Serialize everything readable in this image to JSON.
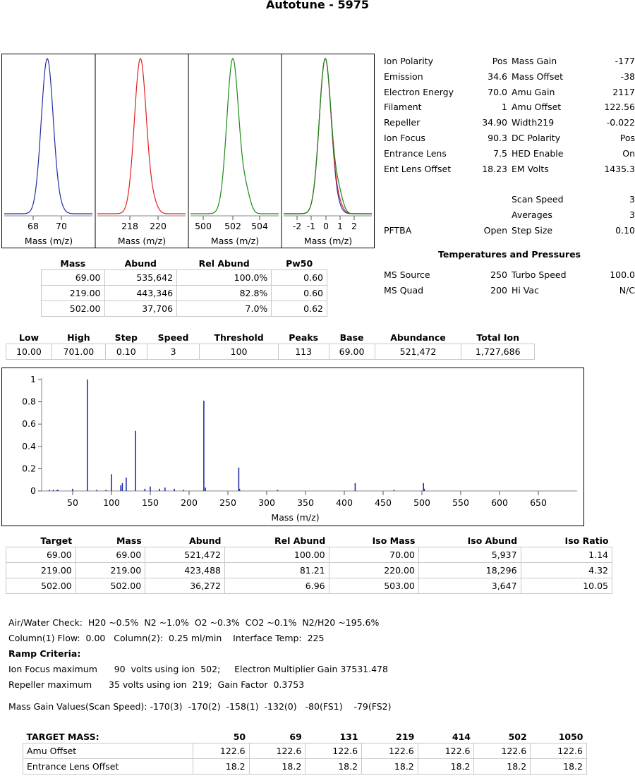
{
  "title": "Autotune - 5975",
  "peak_panels": [
    {
      "ticks": [
        "68",
        "70"
      ],
      "xlabel": "Mass (m/z)",
      "color": "#1f2fa6"
    },
    {
      "ticks": [
        "218",
        "220"
      ],
      "xlabel": "Mass (m/z)",
      "color": "#e02020"
    },
    {
      "ticks": [
        "500",
        "502",
        "504"
      ],
      "xlabel": "Mass (m/z)",
      "color": "#1a8a1a"
    },
    {
      "ticks": [
        "-2",
        "-1",
        "0",
        "1",
        "2"
      ],
      "xlabel": "Mass (m/z)",
      "color": "#1a8a1a"
    }
  ],
  "params_left": [
    {
      "label": "Ion Polarity",
      "value": "Pos"
    },
    {
      "label": "Emission",
      "value": "34.6"
    },
    {
      "label": "Electron Energy",
      "value": "70.0"
    },
    {
      "label": "Filament",
      "value": "1"
    },
    {
      "label": "Repeller",
      "value": "34.90"
    },
    {
      "label": "Ion Focus",
      "value": "90.3"
    },
    {
      "label": "Entrance Lens",
      "value": "7.5"
    },
    {
      "label": "Ent Lens Offset",
      "value": "18.23"
    }
  ],
  "params_right": [
    {
      "label": "Mass Gain",
      "value": "-177"
    },
    {
      "label": "Mass Offset",
      "value": "-38"
    },
    {
      "label": "Amu Gain",
      "value": "2117"
    },
    {
      "label": "Amu Offset",
      "value": "122.56"
    },
    {
      "label": "Width219",
      "value": "-0.022"
    },
    {
      "label": "DC Polarity",
      "value": "Pos"
    },
    {
      "label": "HED Enable",
      "value": "On"
    },
    {
      "label": "EM Volts",
      "value": "1435.3"
    }
  ],
  "scan_params": [
    {
      "label": "Scan Speed",
      "value": "3"
    },
    {
      "label": "Averages",
      "value": "3"
    },
    {
      "label": "Step Size",
      "value": "0.10"
    }
  ],
  "pfbta": {
    "label": "PFTBA",
    "value": "Open"
  },
  "temps_title": "Temperatures and Pressures",
  "temps": [
    {
      "l1": "MS Source",
      "v1": "250",
      "l2": "Turbo Speed",
      "v2": "100.0"
    },
    {
      "l1": "MS Quad",
      "v1": "200",
      "l2": "Hi Vac",
      "v2": "N/C"
    }
  ],
  "peak_table": {
    "headers": [
      "Mass",
      "Abund",
      "Rel Abund",
      "Pw50"
    ],
    "rows": [
      [
        "69.00",
        "535,642",
        "100.0%",
        "0.60"
      ],
      [
        "219.00",
        "443,346",
        "82.8%",
        "0.60"
      ],
      [
        "502.00",
        "37,706",
        "7.0%",
        "0.62"
      ]
    ]
  },
  "scan_table": {
    "headers": [
      "Low",
      "High",
      "Step",
      "Speed",
      "Threshold",
      "Peaks",
      "Base",
      "Abundance",
      "Total Ion"
    ],
    "row": [
      "10.00",
      "701.00",
      "0.10",
      "3",
      "100",
      "113",
      "69.00",
      "521,472",
      "1,727,686"
    ]
  },
  "chart_data": {
    "type": "bar",
    "xlabel": "Mass (m/z)",
    "xlim": [
      10,
      700
    ],
    "ylim": [
      0,
      1
    ],
    "xticks": [
      "50",
      "100",
      "150",
      "200",
      "250",
      "300",
      "350",
      "400",
      "450",
      "500",
      "550",
      "600",
      "650"
    ],
    "yticks": [
      "0",
      "0.2",
      "0.4",
      "0.6",
      "0.8",
      "1"
    ],
    "x": [
      20,
      25,
      30,
      31,
      50,
      69,
      81,
      93,
      100,
      112,
      114,
      119,
      131,
      143,
      150,
      162,
      169,
      181,
      193,
      219,
      221,
      264,
      265,
      314,
      414,
      464,
      502,
      503
    ],
    "y": [
      0.01,
      0.01,
      0.01,
      0.01,
      0.02,
      1.0,
      0.01,
      0.01,
      0.15,
      0.05,
      0.07,
      0.12,
      0.54,
      0.02,
      0.04,
      0.02,
      0.03,
      0.02,
      0.01,
      0.81,
      0.03,
      0.21,
      0.02,
      0.01,
      0.07,
      0.01,
      0.07,
      0.02
    ],
    "color": "#1f2fa6"
  },
  "target_table": {
    "headers": [
      "Target",
      "Mass",
      "Abund",
      "Rel Abund",
      "Iso Mass",
      "Iso Abund",
      "Iso Ratio"
    ],
    "rows": [
      [
        "69.00",
        "69.00",
        "521,472",
        "100.00",
        "70.00",
        "5,937",
        "1.14"
      ],
      [
        "219.00",
        "219.00",
        "423,488",
        "81.21",
        "220.00",
        "18,296",
        "4.32"
      ],
      [
        "502.00",
        "502.00",
        "36,272",
        "6.96",
        "503.00",
        "3,647",
        "10.05"
      ]
    ]
  },
  "notes": {
    "air_water": "Air/Water Check:  H20 ~0.5%  N2 ~1.0%  O2 ~0.3%  CO2 ~0.1%  N2/H20 ~195.6%",
    "column": "Column(1) Flow:  0.00   Column(2):  0.25 ml/min    Interface Temp:  225",
    "ramp_title": "Ramp Criteria:",
    "ramp1": "Ion Focus maximum      90  volts using ion  502;     Electron Multiplier Gain 37531.478",
    "ramp2": "Repeller maximum      35 volts using ion  219;  Gain Factor  0.3753",
    "mass_gain": "Mass Gain Values(Scan Speed): -170(3)  -170(2)  -158(1)  -132(0)   -80(FS1)    -79(FS2)"
  },
  "mass_table": {
    "headers": [
      "TARGET MASS:",
      "50",
      "69",
      "131",
      "219",
      "414",
      "502",
      "1050"
    ],
    "rows": [
      [
        "Amu Offset",
        "122.6",
        "122.6",
        "122.6",
        "122.6",
        "122.6",
        "122.6",
        "122.6"
      ],
      [
        "Entrance Lens Offset",
        "18.2",
        "18.2",
        "18.2",
        "18.2",
        "18.2",
        "18.2",
        "18.2"
      ]
    ]
  }
}
